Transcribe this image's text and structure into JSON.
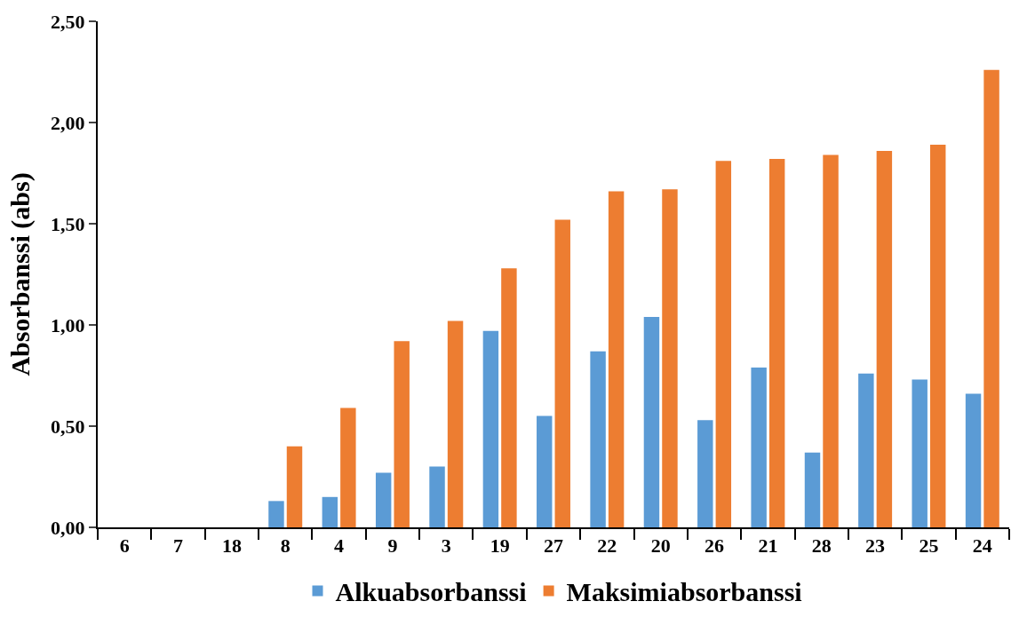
{
  "chart_data": {
    "type": "bar",
    "ylabel": "Absorbanssi (abs)",
    "categories": [
      "6",
      "7",
      "18",
      "8",
      "4",
      "9",
      "3",
      "19",
      "27",
      "22",
      "20",
      "26",
      "21",
      "28",
      "23",
      "25",
      "24"
    ],
    "series": [
      {
        "name": "Alkuabsorbanssi",
        "color": "#5b9bd5",
        "values": [
          null,
          null,
          null,
          0.13,
          0.15,
          0.27,
          0.3,
          0.97,
          0.55,
          0.87,
          1.04,
          0.53,
          0.79,
          0.37,
          0.76,
          0.73,
          0.66
        ]
      },
      {
        "name": "Maksimiabsorbanssi",
        "color": "#ed7d31",
        "values": [
          null,
          null,
          null,
          0.4,
          0.59,
          0.92,
          1.02,
          1.28,
          1.52,
          1.66,
          1.67,
          1.81,
          1.82,
          1.84,
          1.86,
          1.89,
          2.26
        ]
      }
    ],
    "ylim": [
      0,
      2.5
    ],
    "yticks": [
      {
        "value": 0,
        "label": "0,00"
      },
      {
        "value": 0.5,
        "label": "0,50"
      },
      {
        "value": 1.0,
        "label": "1,00"
      },
      {
        "value": 1.5,
        "label": "1,50"
      },
      {
        "value": 2.0,
        "label": "2,00"
      },
      {
        "value": 2.5,
        "label": "2,50"
      }
    ],
    "legend": "bottom"
  }
}
